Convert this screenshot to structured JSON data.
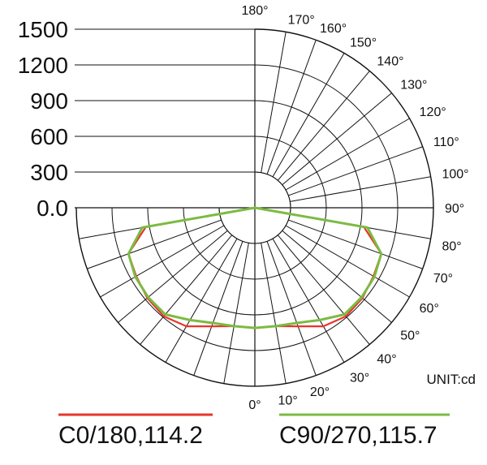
{
  "chart_data": {
    "type": "polar",
    "unit_label": "UNIT:cd",
    "radial_ticks": [
      {
        "value": 1500,
        "label": "1500"
      },
      {
        "value": 1200,
        "label": "1200"
      },
      {
        "value": 900,
        "label": "900"
      },
      {
        "value": 600,
        "label": "600"
      },
      {
        "value": 300,
        "label": "300"
      },
      {
        "value": 0,
        "label": "0.0"
      }
    ],
    "angle_ticks": [
      {
        "angle": 0,
        "label": "0°"
      },
      {
        "angle": 10,
        "label": "10°"
      },
      {
        "angle": 20,
        "label": "20°"
      },
      {
        "angle": 30,
        "label": "30°"
      },
      {
        "angle": 40,
        "label": "40°"
      },
      {
        "angle": 50,
        "label": "50°"
      },
      {
        "angle": 60,
        "label": "60°"
      },
      {
        "angle": 70,
        "label": "70°"
      },
      {
        "angle": 80,
        "label": "80°"
      },
      {
        "angle": 90,
        "label": "90°"
      },
      {
        "angle": 100,
        "label": "100°"
      },
      {
        "angle": 110,
        "label": "110°"
      },
      {
        "angle": 120,
        "label": "120°"
      },
      {
        "angle": 130,
        "label": "130°"
      },
      {
        "angle": 140,
        "label": "140°"
      },
      {
        "angle": 150,
        "label": "150°"
      },
      {
        "angle": 160,
        "label": "160°"
      },
      {
        "angle": 170,
        "label": "170°"
      },
      {
        "angle": 180,
        "label": "180°"
      }
    ],
    "series": [
      {
        "name": "C0/180,114.2",
        "color": "#e8352b",
        "angles": [
          0,
          10,
          20,
          30,
          40,
          50,
          60,
          70,
          80,
          90
        ],
        "values": [
          1010,
          1010,
          1060,
          1150,
          1190,
          1180,
          1150,
          1130,
          930,
          0
        ]
      },
      {
        "name": "C90/270,115.7",
        "color": "#7cbb42",
        "angles": [
          0,
          10,
          20,
          30,
          40,
          50,
          60,
          70,
          80,
          90
        ],
        "values": [
          1010,
          1010,
          1030,
          1090,
          1170,
          1170,
          1160,
          1130,
          960,
          0
        ]
      }
    ]
  }
}
